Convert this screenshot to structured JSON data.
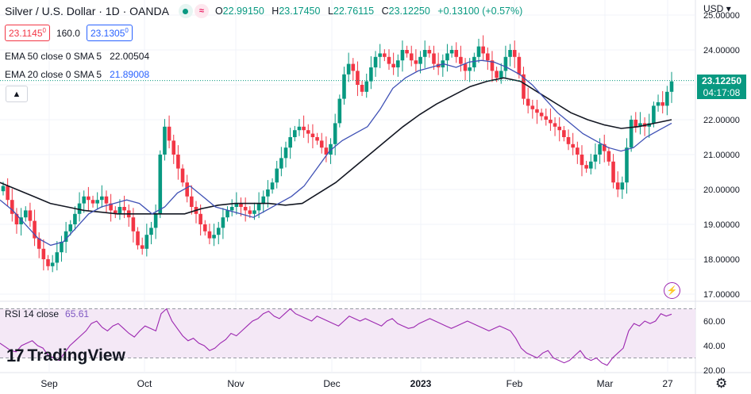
{
  "header": {
    "symbol": "Silver / U.S. Dollar · 1D · OANDA",
    "green_dot_icon": "market-open-dot-icon",
    "pink_icon": "≈",
    "ohlc": {
      "o_label": "O",
      "o": "22.99150",
      "h_label": "H",
      "h": "23.17450",
      "l_label": "L",
      "l": "22.76115",
      "c_label": "C",
      "c": "23.12250",
      "change": "+0.13100 (+0.57%)"
    }
  },
  "quote": {
    "sell": "23.1145",
    "sell_sup": "0",
    "spread": "160.0",
    "buy": "23.1305",
    "buy_sup": "0"
  },
  "indicators": [
    {
      "label": "EMA 50 close 0 SMA 5",
      "value": "22.00504",
      "color": "#131722"
    },
    {
      "label": "EMA 20 close 0 SMA 5",
      "value": "21.89008",
      "color": "#2962ff"
    }
  ],
  "collapse_icon": "chevron-up-icon",
  "currency": "USD",
  "currency_caret": "▾",
  "last_price": {
    "price": "23.12250",
    "countdown": "04:17:08",
    "color": "#089981"
  },
  "rsi": {
    "label": "RSI 14 close",
    "value": "65.61"
  },
  "logo": {
    "mark": "17",
    "text": "TradingView"
  },
  "colors": {
    "up": "#089981",
    "down": "#f23645",
    "ema50": "#131722",
    "ema20": "#3f51b5",
    "rsi": "#9c27b0"
  },
  "chart_data": {
    "type": "candlestick",
    "price_axis": {
      "ticks": [
        "25.00000",
        "24.00000",
        "23.00000",
        "22.00000",
        "21.00000",
        "20.00000",
        "19.00000",
        "18.00000",
        "17.00000"
      ],
      "ylim": [
        17.0,
        25.0
      ]
    },
    "time_axis": {
      "labels": [
        "Sep",
        "Oct",
        "Nov",
        "Dec",
        "2023",
        "Feb",
        "Mar",
        "27"
      ]
    },
    "close_series": [
      20.1,
      19.7,
      19.3,
      19.0,
      19.2,
      19.4,
      19.1,
      18.6,
      18.3,
      18.0,
      17.8,
      17.9,
      18.2,
      18.5,
      18.8,
      19.0,
      19.3,
      19.6,
      19.8,
      19.7,
      19.6,
      19.7,
      19.8,
      19.6,
      19.4,
      19.3,
      19.5,
      19.4,
      19.2,
      18.8,
      18.4,
      18.3,
      18.7,
      18.9,
      19.3,
      21.0,
      21.8,
      21.4,
      21.0,
      20.6,
      20.2,
      19.8,
      19.5,
      19.3,
      19.0,
      18.8,
      18.6,
      18.7,
      18.9,
      19.2,
      19.4,
      19.5,
      19.6,
      19.5,
      19.4,
      19.3,
      19.4,
      19.6,
      19.8,
      20.0,
      20.2,
      20.6,
      20.9,
      21.2,
      21.5,
      21.7,
      21.8,
      21.7,
      21.6,
      21.5,
      21.4,
      21.2,
      21.0,
      21.3,
      21.9,
      22.6,
      23.3,
      23.6,
      23.4,
      23.0,
      22.8,
      23.1,
      23.5,
      23.8,
      23.9,
      23.8,
      23.6,
      23.5,
      23.7,
      24.0,
      23.9,
      23.7,
      23.6,
      23.8,
      24.0,
      23.9,
      23.6,
      23.5,
      23.7,
      23.9,
      24.0,
      23.8,
      23.6,
      23.4,
      23.5,
      23.8,
      24.1,
      23.9,
      23.7,
      23.4,
      23.2,
      23.4,
      23.8,
      24.0,
      23.8,
      23.3,
      22.6,
      22.4,
      22.3,
      22.2,
      22.1,
      22.0,
      21.9,
      21.8,
      21.7,
      21.5,
      21.3,
      21.2,
      21.0,
      20.7,
      20.6,
      20.8,
      21.0,
      21.3,
      21.1,
      20.8,
      20.2,
      20.0,
      20.2,
      21.2,
      22.0,
      21.8,
      21.9,
      21.8,
      21.9,
      22.4,
      22.5,
      22.4,
      22.8,
      23.1
    ],
    "ema50": [
      20.2,
      20.0,
      19.8,
      19.6,
      19.5,
      19.4,
      19.35,
      19.3,
      19.3,
      19.3,
      19.3,
      19.3,
      19.45,
      19.55,
      19.6,
      19.6,
      19.6,
      19.55,
      19.6,
      19.9,
      20.2,
      20.6,
      21.0,
      21.4,
      21.8,
      22.15,
      22.45,
      22.7,
      22.95,
      23.1,
      23.2,
      23.1,
      22.8,
      22.5,
      22.2,
      22.0,
      21.85,
      21.75,
      21.8,
      21.9,
      22.0
    ],
    "ema20": [
      19.7,
      19.4,
      19.0,
      18.6,
      18.4,
      18.5,
      18.9,
      19.3,
      19.5,
      19.6,
      19.7,
      19.6,
      19.3,
      19.5,
      19.9,
      20.1,
      19.8,
      19.5,
      19.4,
      19.3,
      19.2,
      19.4,
      19.6,
      19.8,
      20.1,
      20.6,
      21.1,
      21.4,
      21.6,
      21.8,
      22.3,
      22.9,
      23.2,
      23.4,
      23.5,
      23.6,
      23.5,
      23.65,
      23.7,
      23.65,
      23.5,
      23.3,
      23.0,
      22.6,
      22.2,
      21.9,
      21.6,
      21.4,
      21.2,
      21.1,
      21.2,
      21.5,
      21.7,
      21.9
    ],
    "rsi_axis": {
      "ticks": [
        "60.00",
        "40.00",
        "20.00"
      ],
      "bands": [
        30,
        70
      ]
    },
    "rsi_series": [
      42,
      39,
      36,
      35,
      40,
      42,
      44,
      40,
      38,
      32,
      30,
      28,
      34,
      40,
      44,
      48,
      52,
      58,
      60,
      55,
      52,
      56,
      58,
      54,
      50,
      47,
      52,
      56,
      54,
      52,
      66,
      70,
      60,
      54,
      48,
      44,
      46,
      42,
      40,
      36,
      38,
      42,
      45,
      50,
      48,
      52,
      56,
      60,
      62,
      66,
      68,
      64,
      62,
      66,
      70,
      66,
      64,
      62,
      60,
      64,
      62,
      60,
      58,
      56,
      60,
      64,
      62,
      60,
      62,
      60,
      58,
      56,
      60,
      62,
      58,
      56,
      54,
      55,
      58,
      60,
      62,
      60,
      58,
      56,
      54,
      56,
      58,
      60,
      58,
      56,
      54,
      52,
      54,
      56,
      54,
      52,
      46,
      38,
      34,
      32,
      30,
      34,
      36,
      30,
      28,
      26,
      28,
      32,
      36,
      30,
      28,
      30,
      26,
      24,
      30,
      34,
      38,
      52,
      58,
      56,
      60,
      58,
      60,
      66,
      64,
      65.61
    ]
  }
}
